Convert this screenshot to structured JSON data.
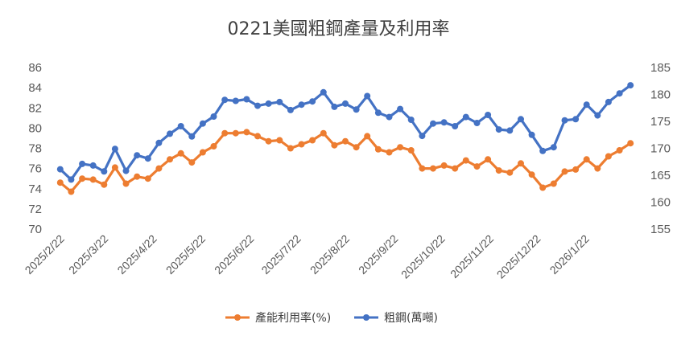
{
  "chart_data": {
    "type": "line",
    "title": "0221美國粗鋼產量及利用率",
    "x": [
      "2025/2/22",
      "2025/3/1",
      "2025/3/8",
      "2025/3/15",
      "2025/3/22",
      "2025/3/29",
      "2025/4/5",
      "2025/4/12",
      "2025/4/19",
      "2025/4/26",
      "2025/5/3",
      "2025/5/10",
      "2025/5/17",
      "2025/5/24",
      "2025/5/31",
      "2025/6/7",
      "2025/6/14",
      "2025/6/21",
      "2025/6/28",
      "2025/7/5",
      "2025/7/12",
      "2025/7/19",
      "2025/7/26",
      "2025/8/2",
      "2025/8/9",
      "2025/8/16",
      "2025/8/23",
      "2025/8/30",
      "2025/9/6",
      "2025/9/13",
      "2025/9/20",
      "2025/9/27",
      "2025/10/4",
      "2025/10/11",
      "2025/10/18",
      "2025/10/25",
      "2025/11/1",
      "2025/11/8",
      "2025/11/15",
      "2025/11/22",
      "2025/11/29",
      "2025/12/6",
      "2025/12/13",
      "2025/12/20",
      "2025/12/27",
      "2026/1/3",
      "2026/1/10",
      "2026/1/17",
      "2026/1/24",
      "2026/1/31",
      "2026/2/7",
      "2026/2/14",
      "2026/2/21"
    ],
    "x_tick_labels": [
      "2025/2/22",
      "2025/3/22",
      "2025/4/22",
      "2025/5/22",
      "2025/6/22",
      "2025/7/22",
      "2025/8/22",
      "2025/9/22",
      "2025/10/22",
      "2025/11/22",
      "2025/12/22",
      "2026/1/22"
    ],
    "x_tick_positions": [
      0,
      4,
      8.43,
      12.86,
      17.29,
      21.57,
      26,
      30.43,
      34.71,
      39.14,
      43.43,
      47.86
    ],
    "series": [
      {
        "name": "產能利用率(%)",
        "axis": "left",
        "color": "#ED7D31",
        "values": [
          74.6,
          73.7,
          75.0,
          74.9,
          74.4,
          76.1,
          74.5,
          75.2,
          75.0,
          76.0,
          76.9,
          77.5,
          76.6,
          77.6,
          78.2,
          79.5,
          79.5,
          79.6,
          79.2,
          78.7,
          78.8,
          78.0,
          78.4,
          78.8,
          79.5,
          78.3,
          78.7,
          78.1,
          79.2,
          77.9,
          77.6,
          78.1,
          77.8,
          76.0,
          76.0,
          76.3,
          76.0,
          76.8,
          76.2,
          76.9,
          75.8,
          75.6,
          76.5,
          75.4,
          74.1,
          74.5,
          75.7,
          75.9,
          76.9,
          76.0,
          77.2,
          77.8,
          78.5
        ]
      },
      {
        "name": "粗鋼(萬噸)",
        "axis": "right",
        "color": "#4472C4",
        "values": [
          166.1,
          164.2,
          167.1,
          166.8,
          165.7,
          169.9,
          165.8,
          168.7,
          168.1,
          171.0,
          172.7,
          174.1,
          172.2,
          174.6,
          175.9,
          179.0,
          178.8,
          179.1,
          177.9,
          178.3,
          178.6,
          177.1,
          178.1,
          178.7,
          180.4,
          177.7,
          178.3,
          177.2,
          179.7,
          176.6,
          175.8,
          177.3,
          175.3,
          172.3,
          174.6,
          174.8,
          174.1,
          175.8,
          174.7,
          176.2,
          173.5,
          173.3,
          175.4,
          172.5,
          169.5,
          170.2,
          175.2,
          175.4,
          178.1,
          176.1,
          178.6,
          180.2,
          181.7
        ]
      }
    ],
    "y_left": {
      "min": 70,
      "max": 86,
      "step": 2,
      "ticks": [
        "86",
        "84",
        "82",
        "80",
        "78",
        "76",
        "74",
        "72",
        "70"
      ]
    },
    "y_right": {
      "min": 155,
      "max": 185,
      "step": 5,
      "ticks": [
        "185",
        "180",
        "175",
        "170",
        "165",
        "160",
        "155"
      ]
    },
    "grid": false,
    "legend_position": "bottom"
  }
}
